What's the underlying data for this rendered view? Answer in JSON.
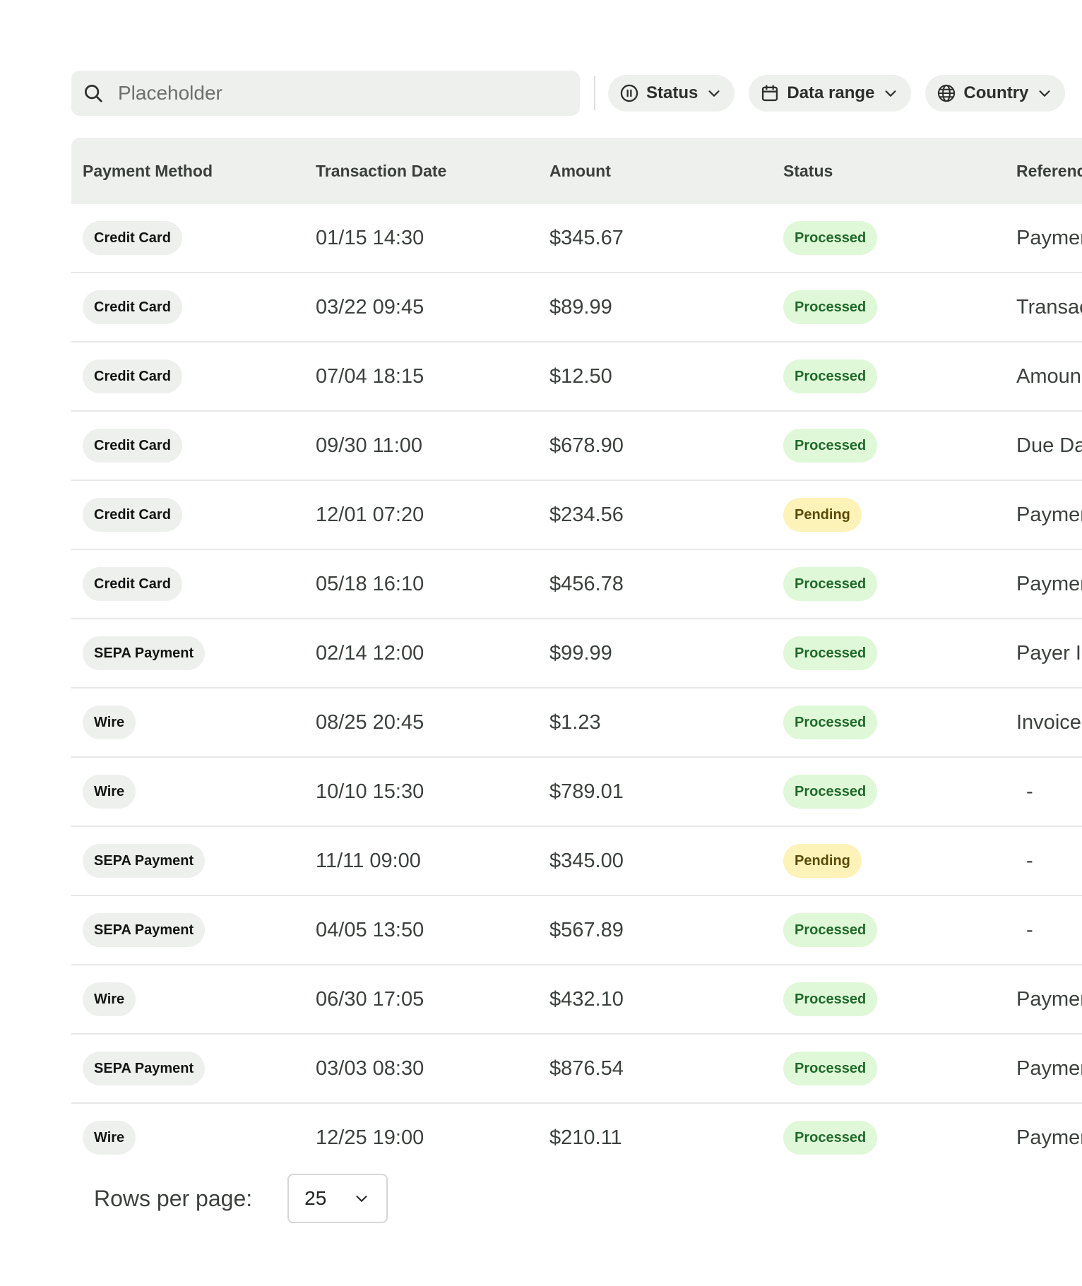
{
  "search": {
    "placeholder": "Placeholder"
  },
  "filters": [
    {
      "label": "Status",
      "icon": "pause-circle-icon"
    },
    {
      "label": "Data range",
      "icon": "calendar-icon"
    },
    {
      "label": "Country",
      "icon": "globe-icon"
    }
  ],
  "table": {
    "columns": [
      "Payment Method",
      "Transaction Date",
      "Amount",
      "Status",
      "Referenc"
    ],
    "rows": [
      {
        "method": "Credit Card",
        "date": "01/15 14:30",
        "amount": "$345.67",
        "status": "Processed",
        "ref": "Paymer"
      },
      {
        "method": "Credit Card",
        "date": "03/22 09:45",
        "amount": "$89.99",
        "status": "Processed",
        "ref": "Transac"
      },
      {
        "method": "Credit Card",
        "date": "07/04 18:15",
        "amount": "$12.50",
        "status": "Processed",
        "ref": "Amoun"
      },
      {
        "method": "Credit Card",
        "date": "09/30 11:00",
        "amount": "$678.90",
        "status": "Processed",
        "ref": "Due Dat"
      },
      {
        "method": "Credit Card",
        "date": "12/01 07:20",
        "amount": "$234.56",
        "status": "Pending",
        "ref": "Paymer"
      },
      {
        "method": "Credit Card",
        "date": "05/18 16:10",
        "amount": "$456.78",
        "status": "Processed",
        "ref": "Paymer"
      },
      {
        "method": "SEPA Payment",
        "date": "02/14 12:00",
        "amount": "$99.99",
        "status": "Processed",
        "ref": "Payer Ir"
      },
      {
        "method": "Wire",
        "date": "08/25 20:45",
        "amount": "$1.23",
        "status": "Processed",
        "ref": "Invoice"
      },
      {
        "method": "Wire",
        "date": "10/10 15:30",
        "amount": "$789.01",
        "status": "Processed",
        "ref": "-"
      },
      {
        "method": "SEPA Payment",
        "date": "11/11 09:00",
        "amount": "$345.00",
        "status": "Pending",
        "ref": "-"
      },
      {
        "method": "SEPA Payment",
        "date": "04/05 13:50",
        "amount": "$567.89",
        "status": "Processed",
        "ref": "-"
      },
      {
        "method": "Wire",
        "date": "06/30 17:05",
        "amount": "$432.10",
        "status": "Processed",
        "ref": "Paymer"
      },
      {
        "method": "SEPA Payment",
        "date": "03/03 08:30",
        "amount": "$876.54",
        "status": "Processed",
        "ref": "Paymer"
      },
      {
        "method": "Wire",
        "date": "12/25 19:00",
        "amount": "$210.11",
        "status": "Processed",
        "ref": "Paymer"
      }
    ]
  },
  "pagination": {
    "rows_per_page_label": "Rows per page:",
    "rows_per_page_value": "25"
  },
  "colors": {
    "surface": "#eef0ee",
    "processed_bg": "#dff8d8",
    "processed_text": "#1f6a2a",
    "pending_bg": "#fdf3b8",
    "pending_text": "#5a4a08"
  }
}
